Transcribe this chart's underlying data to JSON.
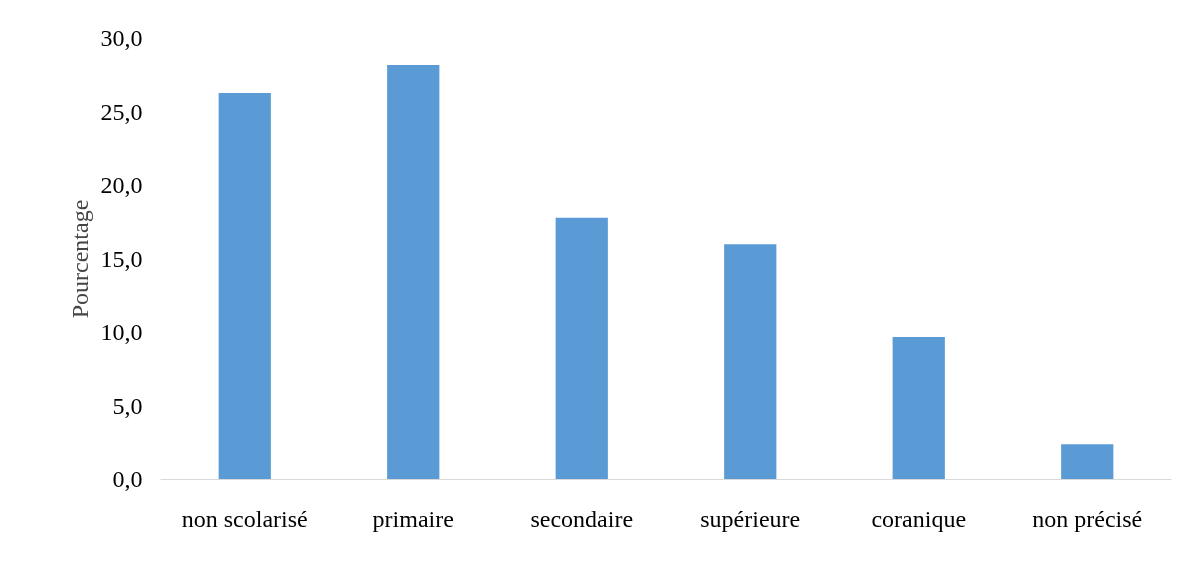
{
  "chart_data": {
    "type": "bar",
    "ylabel": "Pourcentage",
    "categories": [
      "non scolarisé",
      "primaire",
      "secondaire",
      "supérieure",
      "coranique",
      "non précisé"
    ],
    "values": [
      26.3,
      28.2,
      17.8,
      16.0,
      9.7,
      2.4
    ],
    "color": "#5b9bd5",
    "ylim": [
      0,
      30
    ],
    "yticks": [
      {
        "value": 0,
        "label": "0,0"
      },
      {
        "value": 5,
        "label": "5,0"
      },
      {
        "value": 10,
        "label": "10,0"
      },
      {
        "value": 15,
        "label": "15,0"
      },
      {
        "value": 20,
        "label": "20,0"
      },
      {
        "value": 25,
        "label": "25,0"
      },
      {
        "value": 30,
        "label": "30,0"
      }
    ],
    "grid": false
  }
}
